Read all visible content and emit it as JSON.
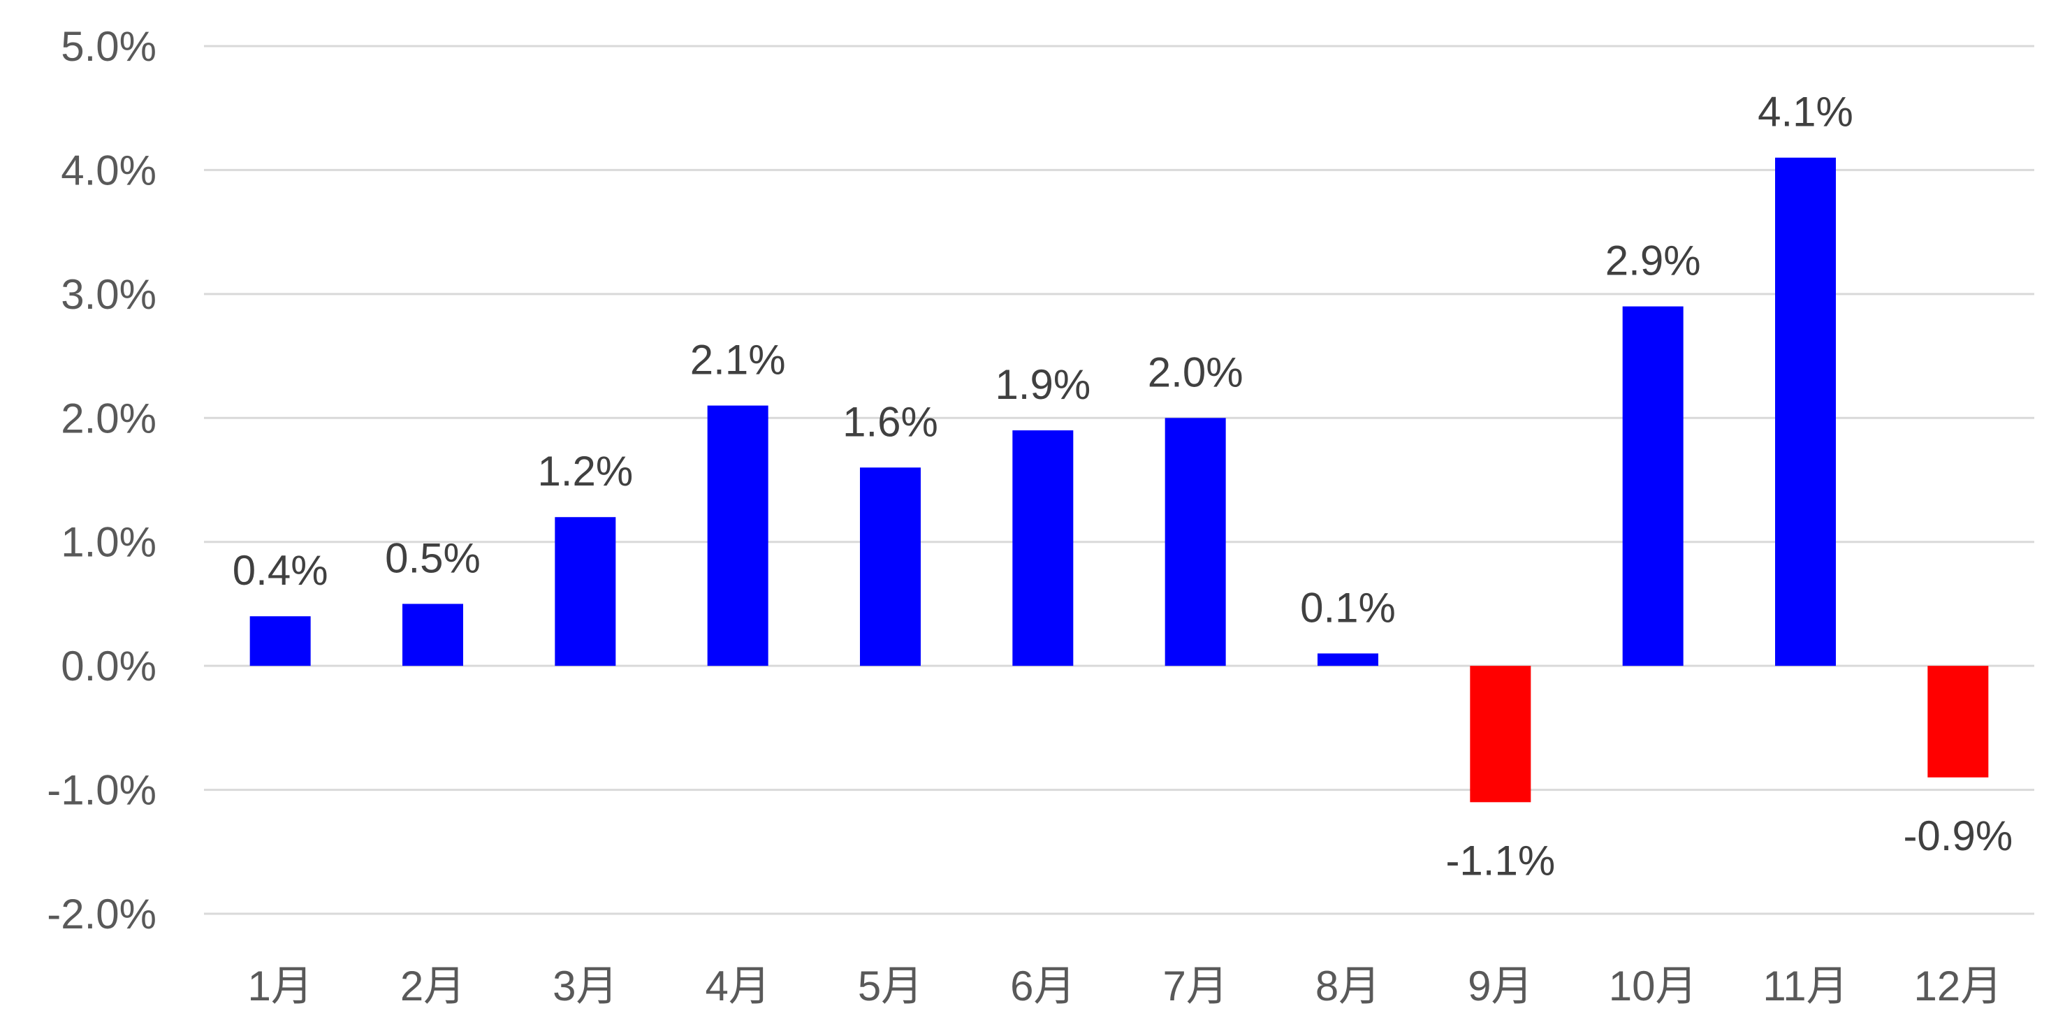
{
  "chart_data": {
    "type": "bar",
    "title": "",
    "xlabel": "",
    "ylabel": "",
    "categories": [
      "1月",
      "2月",
      "3月",
      "4月",
      "5月",
      "6月",
      "7月",
      "8月",
      "9月",
      "10月",
      "11月",
      "12月"
    ],
    "values": [
      0.4,
      0.5,
      1.2,
      2.1,
      1.6,
      1.9,
      2.0,
      0.1,
      -1.1,
      2.9,
      4.1,
      -0.9
    ],
    "data_labels": [
      "0.4%",
      "0.5%",
      "1.2%",
      "2.1%",
      "1.6%",
      "1.9%",
      "2.0%",
      "0.1%",
      "-1.1%",
      "2.9%",
      "4.1%",
      "-0.9%"
    ],
    "ylim": [
      -2.0,
      5.0
    ],
    "yticks": [
      5.0,
      4.0,
      3.0,
      2.0,
      1.0,
      0.0,
      -1.0,
      -2.0
    ],
    "ytick_labels": [
      "5.0%",
      "4.0%",
      "3.0%",
      "2.0%",
      "1.0%",
      "0.0%",
      "-1.0%",
      "-2.0%"
    ],
    "grid": true,
    "legend": "none",
    "colors": {
      "positive": "#0000ff",
      "negative": "#ff0000",
      "grid": "#d9d9d9",
      "tick_text": "#595959",
      "label_text": "#404040"
    }
  }
}
